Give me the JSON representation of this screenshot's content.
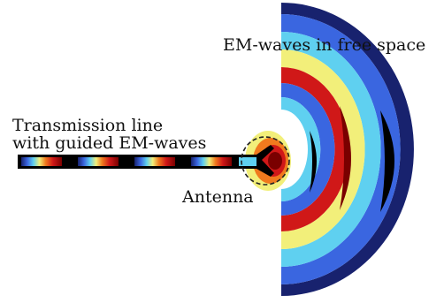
{
  "labels": {
    "free_space": "EM-waves in free space",
    "line_1": "Transmission line",
    "line_2": "with guided EM-waves",
    "antenna": "Antenna"
  },
  "colors": {
    "dark_red": "#7a0000",
    "red": "#d01818",
    "orange": "#f07a1e",
    "yellow": "#f2ef7a",
    "cyan": "#5fd0f0",
    "blue": "#3a66e0",
    "navy": "#18226e",
    "black": "#000000",
    "dashed_circle": "#222222"
  }
}
